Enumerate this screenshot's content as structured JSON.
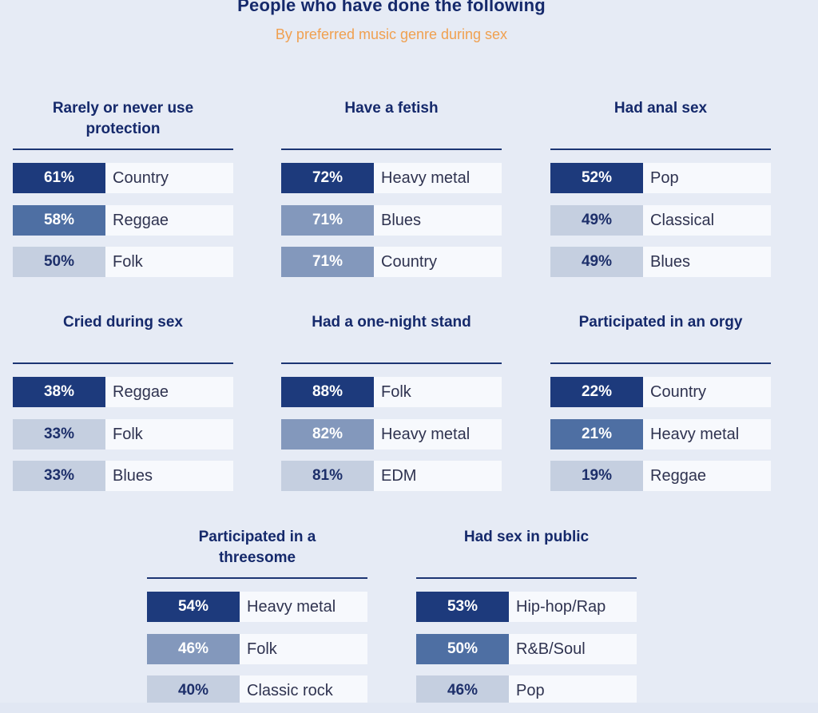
{
  "header": {
    "title": "People who have done the following",
    "subtitle": "By preferred music genre during sex"
  },
  "colors": {
    "shade_dark": "#1d3a7c",
    "shade_mid": "#4e6fa3",
    "shade_soft": "#8398bc",
    "shade_light": "#c5cfe0",
    "accent": "#f0a050"
  },
  "chart_data": {
    "type": "table",
    "title": "People who have done the following",
    "subtitle": "By preferred music genre during sex",
    "unit": "%",
    "panels": [
      {
        "title": "Rarely or never use protection",
        "rows": [
          {
            "genre": "Country",
            "value": 61,
            "label": "61%",
            "shade": "dark"
          },
          {
            "genre": "Reggae",
            "value": 58,
            "label": "58%",
            "shade": "mid"
          },
          {
            "genre": "Folk",
            "value": 50,
            "label": "50%",
            "shade": "light"
          }
        ]
      },
      {
        "title": "Have a fetish",
        "rows": [
          {
            "genre": "Heavy metal",
            "value": 72,
            "label": "72%",
            "shade": "dark"
          },
          {
            "genre": "Blues",
            "value": 71,
            "label": "71%",
            "shade": "soft"
          },
          {
            "genre": "Country",
            "value": 71,
            "label": "71%",
            "shade": "soft"
          }
        ]
      },
      {
        "title": "Had anal sex",
        "rows": [
          {
            "genre": "Pop",
            "value": 52,
            "label": "52%",
            "shade": "dark"
          },
          {
            "genre": "Classical",
            "value": 49,
            "label": "49%",
            "shade": "light"
          },
          {
            "genre": "Blues",
            "value": 49,
            "label": "49%",
            "shade": "light"
          }
        ]
      },
      {
        "title": "Cried during sex",
        "rows": [
          {
            "genre": "Reggae",
            "value": 38,
            "label": "38%",
            "shade": "dark"
          },
          {
            "genre": "Folk",
            "value": 33,
            "label": "33%",
            "shade": "light"
          },
          {
            "genre": "Blues",
            "value": 33,
            "label": "33%",
            "shade": "light"
          }
        ]
      },
      {
        "title": "Had a one-night stand",
        "rows": [
          {
            "genre": "Folk",
            "value": 88,
            "label": "88%",
            "shade": "dark"
          },
          {
            "genre": "Heavy metal",
            "value": 82,
            "label": "82%",
            "shade": "soft"
          },
          {
            "genre": "EDM",
            "value": 81,
            "label": "81%",
            "shade": "light"
          }
        ]
      },
      {
        "title": "Participated in an orgy",
        "rows": [
          {
            "genre": "Country",
            "value": 22,
            "label": "22%",
            "shade": "dark"
          },
          {
            "genre": "Heavy metal",
            "value": 21,
            "label": "21%",
            "shade": "mid"
          },
          {
            "genre": "Reggae",
            "value": 19,
            "label": "19%",
            "shade": "light"
          }
        ]
      },
      {
        "title": "Participated in a threesome",
        "rows": [
          {
            "genre": "Heavy metal",
            "value": 54,
            "label": "54%",
            "shade": "dark"
          },
          {
            "genre": "Folk",
            "value": 46,
            "label": "46%",
            "shade": "soft"
          },
          {
            "genre": "Classic rock",
            "value": 40,
            "label": "40%",
            "shade": "light"
          }
        ]
      },
      {
        "title": "Had sex in public",
        "rows": [
          {
            "genre": "Hip-hop/Rap",
            "value": 53,
            "label": "53%",
            "shade": "dark"
          },
          {
            "genre": "R&B/Soul",
            "value": 50,
            "label": "50%",
            "shade": "mid"
          },
          {
            "genre": "Pop",
            "value": 46,
            "label": "46%",
            "shade": "light"
          }
        ]
      }
    ]
  }
}
